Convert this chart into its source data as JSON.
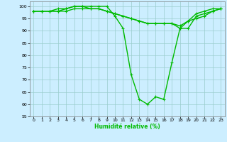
{
  "title": "",
  "xlabel": "Humidité relative (%)",
  "ylabel": "",
  "xlim": [
    -0.5,
    23.5
  ],
  "ylim": [
    55,
    102
  ],
  "yticks": [
    55,
    60,
    65,
    70,
    75,
    80,
    85,
    90,
    95,
    100
  ],
  "xticks": [
    0,
    1,
    2,
    3,
    4,
    5,
    6,
    7,
    8,
    9,
    10,
    11,
    12,
    13,
    14,
    15,
    16,
    17,
    18,
    19,
    20,
    21,
    22,
    23
  ],
  "background_color": "#cceeff",
  "grid_color": "#99cccc",
  "line_color": "#00bb00",
  "series": [
    [
      98,
      98,
      98,
      98,
      99,
      100,
      100,
      100,
      100,
      100,
      96,
      91,
      72,
      62,
      60,
      63,
      62,
      77,
      91,
      94,
      97,
      98,
      99,
      99
    ],
    [
      98,
      98,
      98,
      99,
      99,
      100,
      100,
      99,
      99,
      98,
      97,
      96,
      95,
      94,
      93,
      93,
      93,
      93,
      91,
      91,
      96,
      97,
      98,
      99
    ],
    [
      98,
      98,
      98,
      98,
      98,
      99,
      99,
      99,
      99,
      98,
      97,
      96,
      95,
      94,
      93,
      93,
      93,
      93,
      92,
      94,
      95,
      96,
      98,
      99
    ]
  ],
  "marker": "+",
  "markersize": 3,
  "linewidth": 1.0
}
